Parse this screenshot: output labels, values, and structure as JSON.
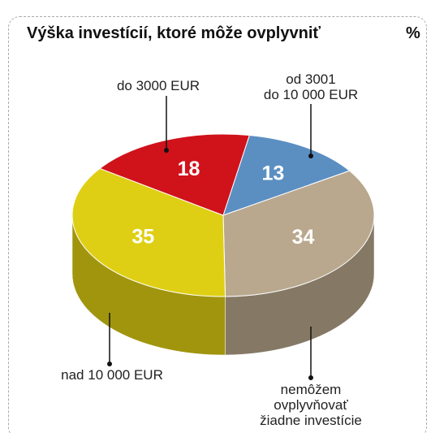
{
  "chart_data": {
    "type": "pie",
    "title": "Výška investícií, ktoré môže ovplyvniť",
    "unit": "%",
    "categories": [
      "od 3001\ndo 10 000 EUR",
      "nemôžem ovplyvňovať\nžiadne investície",
      "nad 10 000 EUR",
      "do 3000 EUR"
    ],
    "values": [
      13,
      34,
      35,
      18
    ],
    "colors": [
      "#5b8fc2",
      "#b9a88e",
      "#dfcf14",
      "#d0121b"
    ]
  }
}
